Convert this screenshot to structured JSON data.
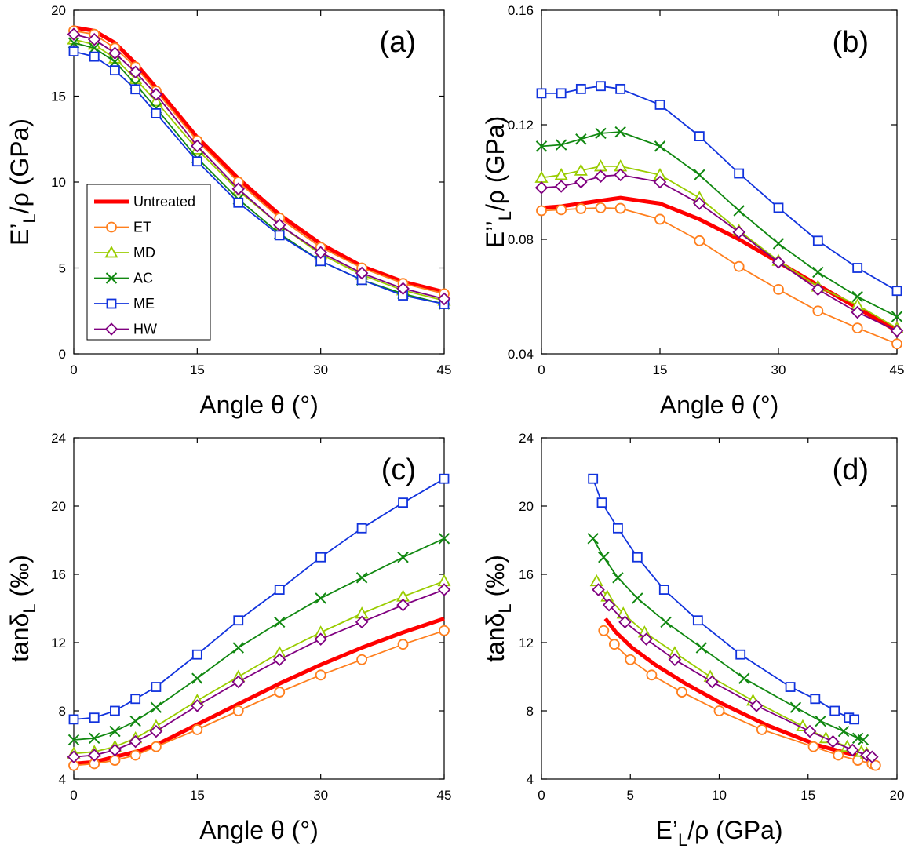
{
  "chart_data": [
    {
      "panel": "(a)",
      "type": "line",
      "xlabel": {
        "main": "Angle θ (°)"
      },
      "ylabel": {
        "main": "E’",
        "sub": "L",
        "tail": "/ρ (GPa)"
      },
      "xlim": [
        0,
        45
      ],
      "ylim": [
        0,
        20
      ],
      "xticks": [
        0,
        15,
        30,
        45
      ],
      "yticks": [
        0,
        5,
        10,
        15,
        20
      ],
      "legend": "left",
      "x": [
        0,
        2.5,
        5,
        7.5,
        10,
        15,
        20,
        25,
        30,
        35,
        40,
        45
      ],
      "series": [
        {
          "name": "Untreated",
          "values": [
            19.0,
            18.8,
            18.1,
            16.9,
            15.5,
            12.6,
            10.2,
            8.1,
            6.4,
            5.1,
            4.2,
            3.6
          ]
        },
        {
          "name": "ET",
          "values": [
            18.8,
            18.6,
            17.8,
            16.7,
            15.3,
            12.4,
            10.0,
            7.9,
            6.2,
            5.0,
            4.1,
            3.5
          ]
        },
        {
          "name": "MD",
          "values": [
            18.3,
            18.0,
            17.2,
            16.0,
            14.7,
            11.9,
            9.5,
            7.5,
            5.8,
            4.6,
            3.7,
            3.1
          ]
        },
        {
          "name": "AC",
          "values": [
            18.1,
            17.8,
            17.0,
            15.7,
            14.3,
            11.4,
            9.0,
            7.0,
            5.4,
            4.3,
            3.5,
            2.9
          ]
        },
        {
          "name": "ME",
          "values": [
            17.6,
            17.3,
            16.5,
            15.4,
            14.0,
            11.2,
            8.8,
            6.9,
            5.4,
            4.3,
            3.4,
            2.9
          ]
        },
        {
          "name": "HW",
          "values": [
            18.6,
            18.3,
            17.5,
            16.4,
            15.1,
            12.1,
            9.6,
            7.5,
            5.9,
            4.7,
            3.8,
            3.2
          ]
        }
      ]
    },
    {
      "panel": "(b)",
      "type": "line",
      "xlabel": {
        "main": "Angle θ (°)"
      },
      "ylabel": {
        "main": "E’’",
        "sub": "L",
        "tail": "/ρ (GPa)"
      },
      "xlim": [
        0,
        45
      ],
      "ylim": [
        0.04,
        0.16
      ],
      "xticks": [
        0,
        15,
        30,
        45
      ],
      "yticks": [
        0.04,
        0.08,
        0.12,
        0.16
      ],
      "ytick_labels": [
        "0.04",
        "0.08",
        "0.12",
        "0.16"
      ],
      "x": [
        0,
        2.5,
        5,
        7.5,
        10,
        15,
        20,
        25,
        30,
        35,
        40,
        45
      ],
      "series": [
        {
          "name": "Untreated",
          "values": [
            0.091,
            0.0915,
            0.0925,
            0.0935,
            0.0945,
            0.0925,
            0.087,
            0.08,
            0.072,
            0.064,
            0.056,
            0.048
          ]
        },
        {
          "name": "ET",
          "values": [
            0.09,
            0.0903,
            0.0907,
            0.091,
            0.0908,
            0.087,
            0.0795,
            0.0705,
            0.0625,
            0.055,
            0.049,
            0.0435
          ]
        },
        {
          "name": "MD",
          "values": [
            0.1015,
            0.1025,
            0.104,
            0.1055,
            0.1055,
            0.1025,
            0.0945,
            0.083,
            0.0725,
            0.0635,
            0.057,
            0.049
          ]
        },
        {
          "name": "AC",
          "values": [
            0.1125,
            0.113,
            0.115,
            0.117,
            0.1175,
            0.1125,
            0.1025,
            0.09,
            0.0785,
            0.0685,
            0.06,
            0.053
          ]
        },
        {
          "name": "ME",
          "values": [
            0.131,
            0.131,
            0.1325,
            0.1335,
            0.1325,
            0.127,
            0.116,
            0.103,
            0.091,
            0.0795,
            0.07,
            0.062
          ]
        },
        {
          "name": "HW",
          "values": [
            0.098,
            0.0985,
            0.1,
            0.102,
            0.1025,
            0.1,
            0.0925,
            0.0825,
            0.072,
            0.0625,
            0.0545,
            0.048
          ]
        }
      ]
    },
    {
      "panel": "(c)",
      "type": "line",
      "xlabel": {
        "main": "Angle θ (°)"
      },
      "ylabel": {
        "main": "tanδ",
        "sub": "L",
        "tail": " (‰)"
      },
      "xlim": [
        0,
        45
      ],
      "ylim": [
        4,
        24
      ],
      "xticks": [
        0,
        15,
        30,
        45
      ],
      "yticks": [
        4,
        8,
        12,
        16,
        20,
        24
      ],
      "x": [
        0,
        2.5,
        5,
        7.5,
        10,
        15,
        20,
        25,
        30,
        35,
        40,
        45
      ],
      "series": [
        {
          "name": "Untreated",
          "values": [
            4.9,
            5.0,
            5.3,
            5.6,
            6.0,
            7.2,
            8.4,
            9.6,
            10.7,
            11.7,
            12.6,
            13.4
          ]
        },
        {
          "name": "ET",
          "values": [
            4.8,
            4.9,
            5.1,
            5.4,
            5.9,
            6.9,
            8.0,
            9.1,
            10.1,
            11.0,
            11.9,
            12.7
          ]
        },
        {
          "name": "MD",
          "values": [
            5.5,
            5.6,
            5.9,
            6.4,
            7.1,
            8.6,
            10.0,
            11.4,
            12.6,
            13.7,
            14.7,
            15.6
          ]
        },
        {
          "name": "AC",
          "values": [
            6.3,
            6.4,
            6.8,
            7.4,
            8.2,
            9.9,
            11.7,
            13.2,
            14.6,
            15.8,
            17.0,
            18.1
          ]
        },
        {
          "name": "ME",
          "values": [
            7.5,
            7.6,
            8.0,
            8.7,
            9.4,
            11.3,
            13.3,
            15.1,
            17.0,
            18.7,
            20.2,
            21.6
          ]
        },
        {
          "name": "HW",
          "values": [
            5.3,
            5.4,
            5.7,
            6.2,
            6.8,
            8.3,
            9.7,
            11.0,
            12.2,
            13.2,
            14.2,
            15.1
          ]
        }
      ]
    },
    {
      "panel": "(d)",
      "type": "line",
      "xlabel": {
        "main": "E’",
        "sub": "L",
        "tail": "/ρ (GPa)"
      },
      "ylabel": {
        "main": "tanδ",
        "sub": "L",
        "tail": " (‰)"
      },
      "xlim": [
        0,
        20
      ],
      "ylim": [
        4,
        24
      ],
      "xticks": [
        0,
        5,
        10,
        15,
        20
      ],
      "yticks": [
        4,
        8,
        12,
        16,
        20,
        24
      ],
      "series": [
        {
          "name": "Untreated",
          "x": [
            3.6,
            4.2,
            5.1,
            6.4,
            8.1,
            10.2,
            12.6,
            15.5,
            16.9,
            18.1,
            18.8,
            19.0
          ],
          "values": [
            13.4,
            12.6,
            11.7,
            10.7,
            9.6,
            8.4,
            7.2,
            6.0,
            5.6,
            5.3,
            5.0,
            4.9
          ]
        },
        {
          "name": "ET",
          "x": [
            3.5,
            4.1,
            5.0,
            6.2,
            7.9,
            10.0,
            12.4,
            15.3,
            16.7,
            17.8,
            18.6,
            18.8
          ],
          "values": [
            12.7,
            11.9,
            11.0,
            10.1,
            9.1,
            8.0,
            6.9,
            5.9,
            5.4,
            5.1,
            4.9,
            4.8
          ]
        },
        {
          "name": "MD",
          "x": [
            3.1,
            3.7,
            4.6,
            5.8,
            7.5,
            9.5,
            11.9,
            14.7,
            16.0,
            17.2,
            18.0,
            18.3
          ],
          "values": [
            15.6,
            14.7,
            13.7,
            12.6,
            11.4,
            10.0,
            8.6,
            7.1,
            6.4,
            5.9,
            5.6,
            5.5
          ]
        },
        {
          "name": "AC",
          "x": [
            2.9,
            3.5,
            4.3,
            5.4,
            7.0,
            9.0,
            11.4,
            14.3,
            15.7,
            17.0,
            17.8,
            18.1
          ],
          "values": [
            18.1,
            17.0,
            15.8,
            14.6,
            13.2,
            11.7,
            9.9,
            8.2,
            7.4,
            6.8,
            6.4,
            6.3
          ]
        },
        {
          "name": "ME",
          "x": [
            2.9,
            3.4,
            4.3,
            5.4,
            6.9,
            8.8,
            11.2,
            14.0,
            15.4,
            16.5,
            17.3,
            17.6
          ],
          "values": [
            21.6,
            20.2,
            18.7,
            17.0,
            15.1,
            13.3,
            11.3,
            9.4,
            8.7,
            8.0,
            7.6,
            7.5
          ]
        },
        {
          "name": "HW",
          "x": [
            3.2,
            3.8,
            4.7,
            5.9,
            7.5,
            9.6,
            12.1,
            15.1,
            16.4,
            17.5,
            18.3,
            18.6
          ],
          "values": [
            15.1,
            14.2,
            13.2,
            12.2,
            11.0,
            9.7,
            8.3,
            6.8,
            6.2,
            5.7,
            5.4,
            5.3
          ]
        }
      ]
    }
  ],
  "styles": {
    "Untreated": {
      "color": "#ff0000",
      "marker": "none"
    },
    "ET": {
      "color": "#ff7f1e",
      "marker": "circle"
    },
    "MD": {
      "color": "#99cc00",
      "marker": "triangle"
    },
    "AC": {
      "color": "#118811",
      "marker": "x"
    },
    "ME": {
      "color": "#1133dd",
      "marker": "square"
    },
    "HW": {
      "color": "#800080",
      "marker": "diamond"
    }
  }
}
